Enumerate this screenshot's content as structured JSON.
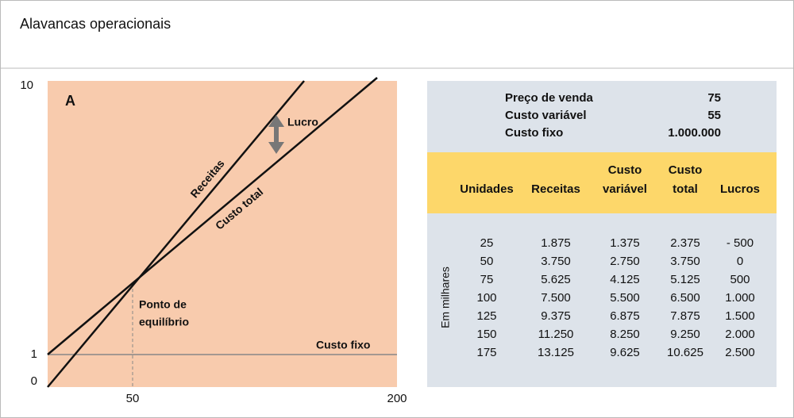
{
  "header": {
    "title": "Alavancas operacionais"
  },
  "diagram": {
    "panel_label": "A",
    "y_labels": [
      "10",
      "1",
      "0"
    ],
    "x_labels": [
      "50",
      "200"
    ],
    "line_labels": {
      "revenue": "Receitas",
      "total_cost": "Custo total",
      "profit": "Lucro",
      "fixed_cost": "Custo fixo"
    },
    "breakeven_label": [
      "Ponto de",
      "equilíbrio"
    ]
  },
  "params": [
    {
      "label": "Preço de venda",
      "value": "75"
    },
    {
      "label": "Custo variável",
      "value": "55"
    },
    {
      "label": "Custo fixo",
      "value": "1.000.000"
    }
  ],
  "table": {
    "unit_note": "Em milhares",
    "header": [
      [
        "Unidades"
      ],
      [
        "Receitas"
      ],
      [
        "Custo",
        "variável"
      ],
      [
        "Custo",
        "total"
      ],
      [
        "Lucros"
      ]
    ],
    "rows": [
      [
        "25",
        "1.875",
        "1.375",
        "2.375",
        "- 500"
      ],
      [
        "50",
        "3.750",
        "2.750",
        "3.750",
        "0"
      ],
      [
        "75",
        "5.625",
        "4.125",
        "5.125",
        "500"
      ],
      [
        "100",
        "7.500",
        "5.500",
        "6.500",
        "1.000"
      ],
      [
        "125",
        "9.375",
        "6.875",
        "7.875",
        "1.500"
      ],
      [
        "150",
        "11.250",
        "8.250",
        "9.250",
        "2.000"
      ],
      [
        "175",
        "13.125",
        "9.625",
        "10.625",
        "2.500"
      ]
    ]
  }
}
